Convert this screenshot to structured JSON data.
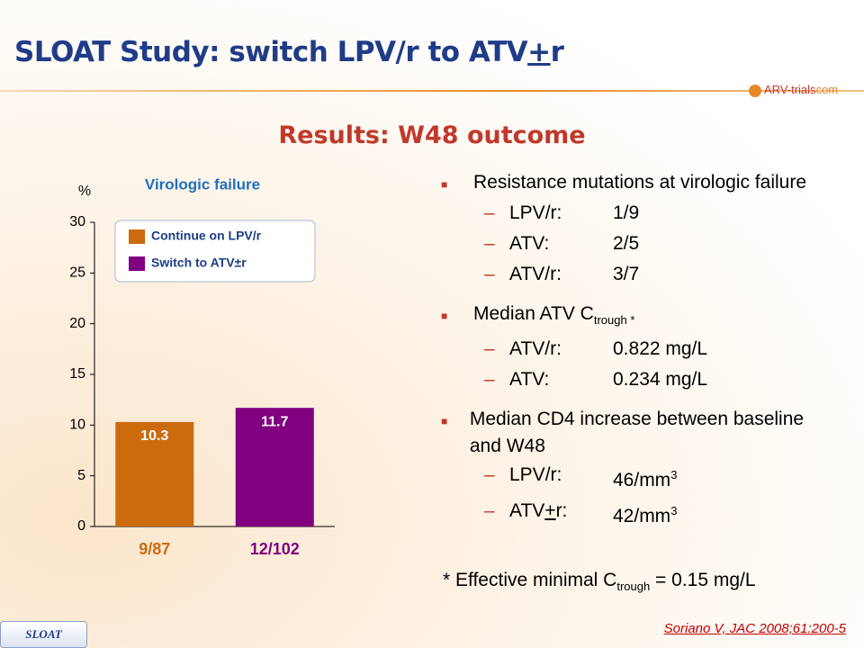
{
  "title": {
    "before": "SLOAT Study: switch LPV/r to ATV",
    "mark": "+",
    "after": "r"
  },
  "logo": {
    "name": "ARV-trials",
    "suffix": "com"
  },
  "subtitle": "Results: W48 outcome",
  "chart_data": {
    "type": "bar",
    "title": "Virologic failure",
    "ylabel": "%",
    "categories": [
      "9/87",
      "12/102"
    ],
    "series": [
      {
        "name": "Continue on LPV/r",
        "color": "#cc6a0e",
        "values": [
          10.3,
          null
        ]
      },
      {
        "name": "Switch to ATV±r",
        "color": "#800080",
        "values": [
          null,
          11.7
        ]
      }
    ],
    "ylim": [
      0,
      30
    ],
    "yticks": [
      0,
      5,
      10,
      15,
      20,
      25,
      30
    ]
  },
  "bullets": [
    {
      "text": "Resistance mutations at virologic failure",
      "items": [
        {
          "label": "LPV/r:",
          "value": "1/9"
        },
        {
          "label": "ATV:",
          "value": "2/5"
        },
        {
          "label": "ATV/r:",
          "value": "3/7"
        }
      ]
    },
    {
      "text": "Median ATV C",
      "sub": "trough *",
      "items": [
        {
          "label": "ATV/r:",
          "value": "0.822 mg/L"
        },
        {
          "label": "ATV:",
          "value": "0.234 mg/L"
        }
      ]
    },
    {
      "text": "Median CD4 increase between baseline and W48",
      "items": [
        {
          "label": "LPV/r:",
          "value": "46/mm",
          "sup": "3"
        },
        {
          "label": "ATV",
          "mark": "+",
          "rest": "r:",
          "value": "42/mm",
          "sup": "3"
        }
      ]
    }
  ],
  "footnote": {
    "before": "* Effective minimal C",
    "sub": "trough",
    "after": " = 0.15 mg/L"
  },
  "citation": "Soriano V, JAC 2008;61:200-5",
  "tag": "SLOAT"
}
